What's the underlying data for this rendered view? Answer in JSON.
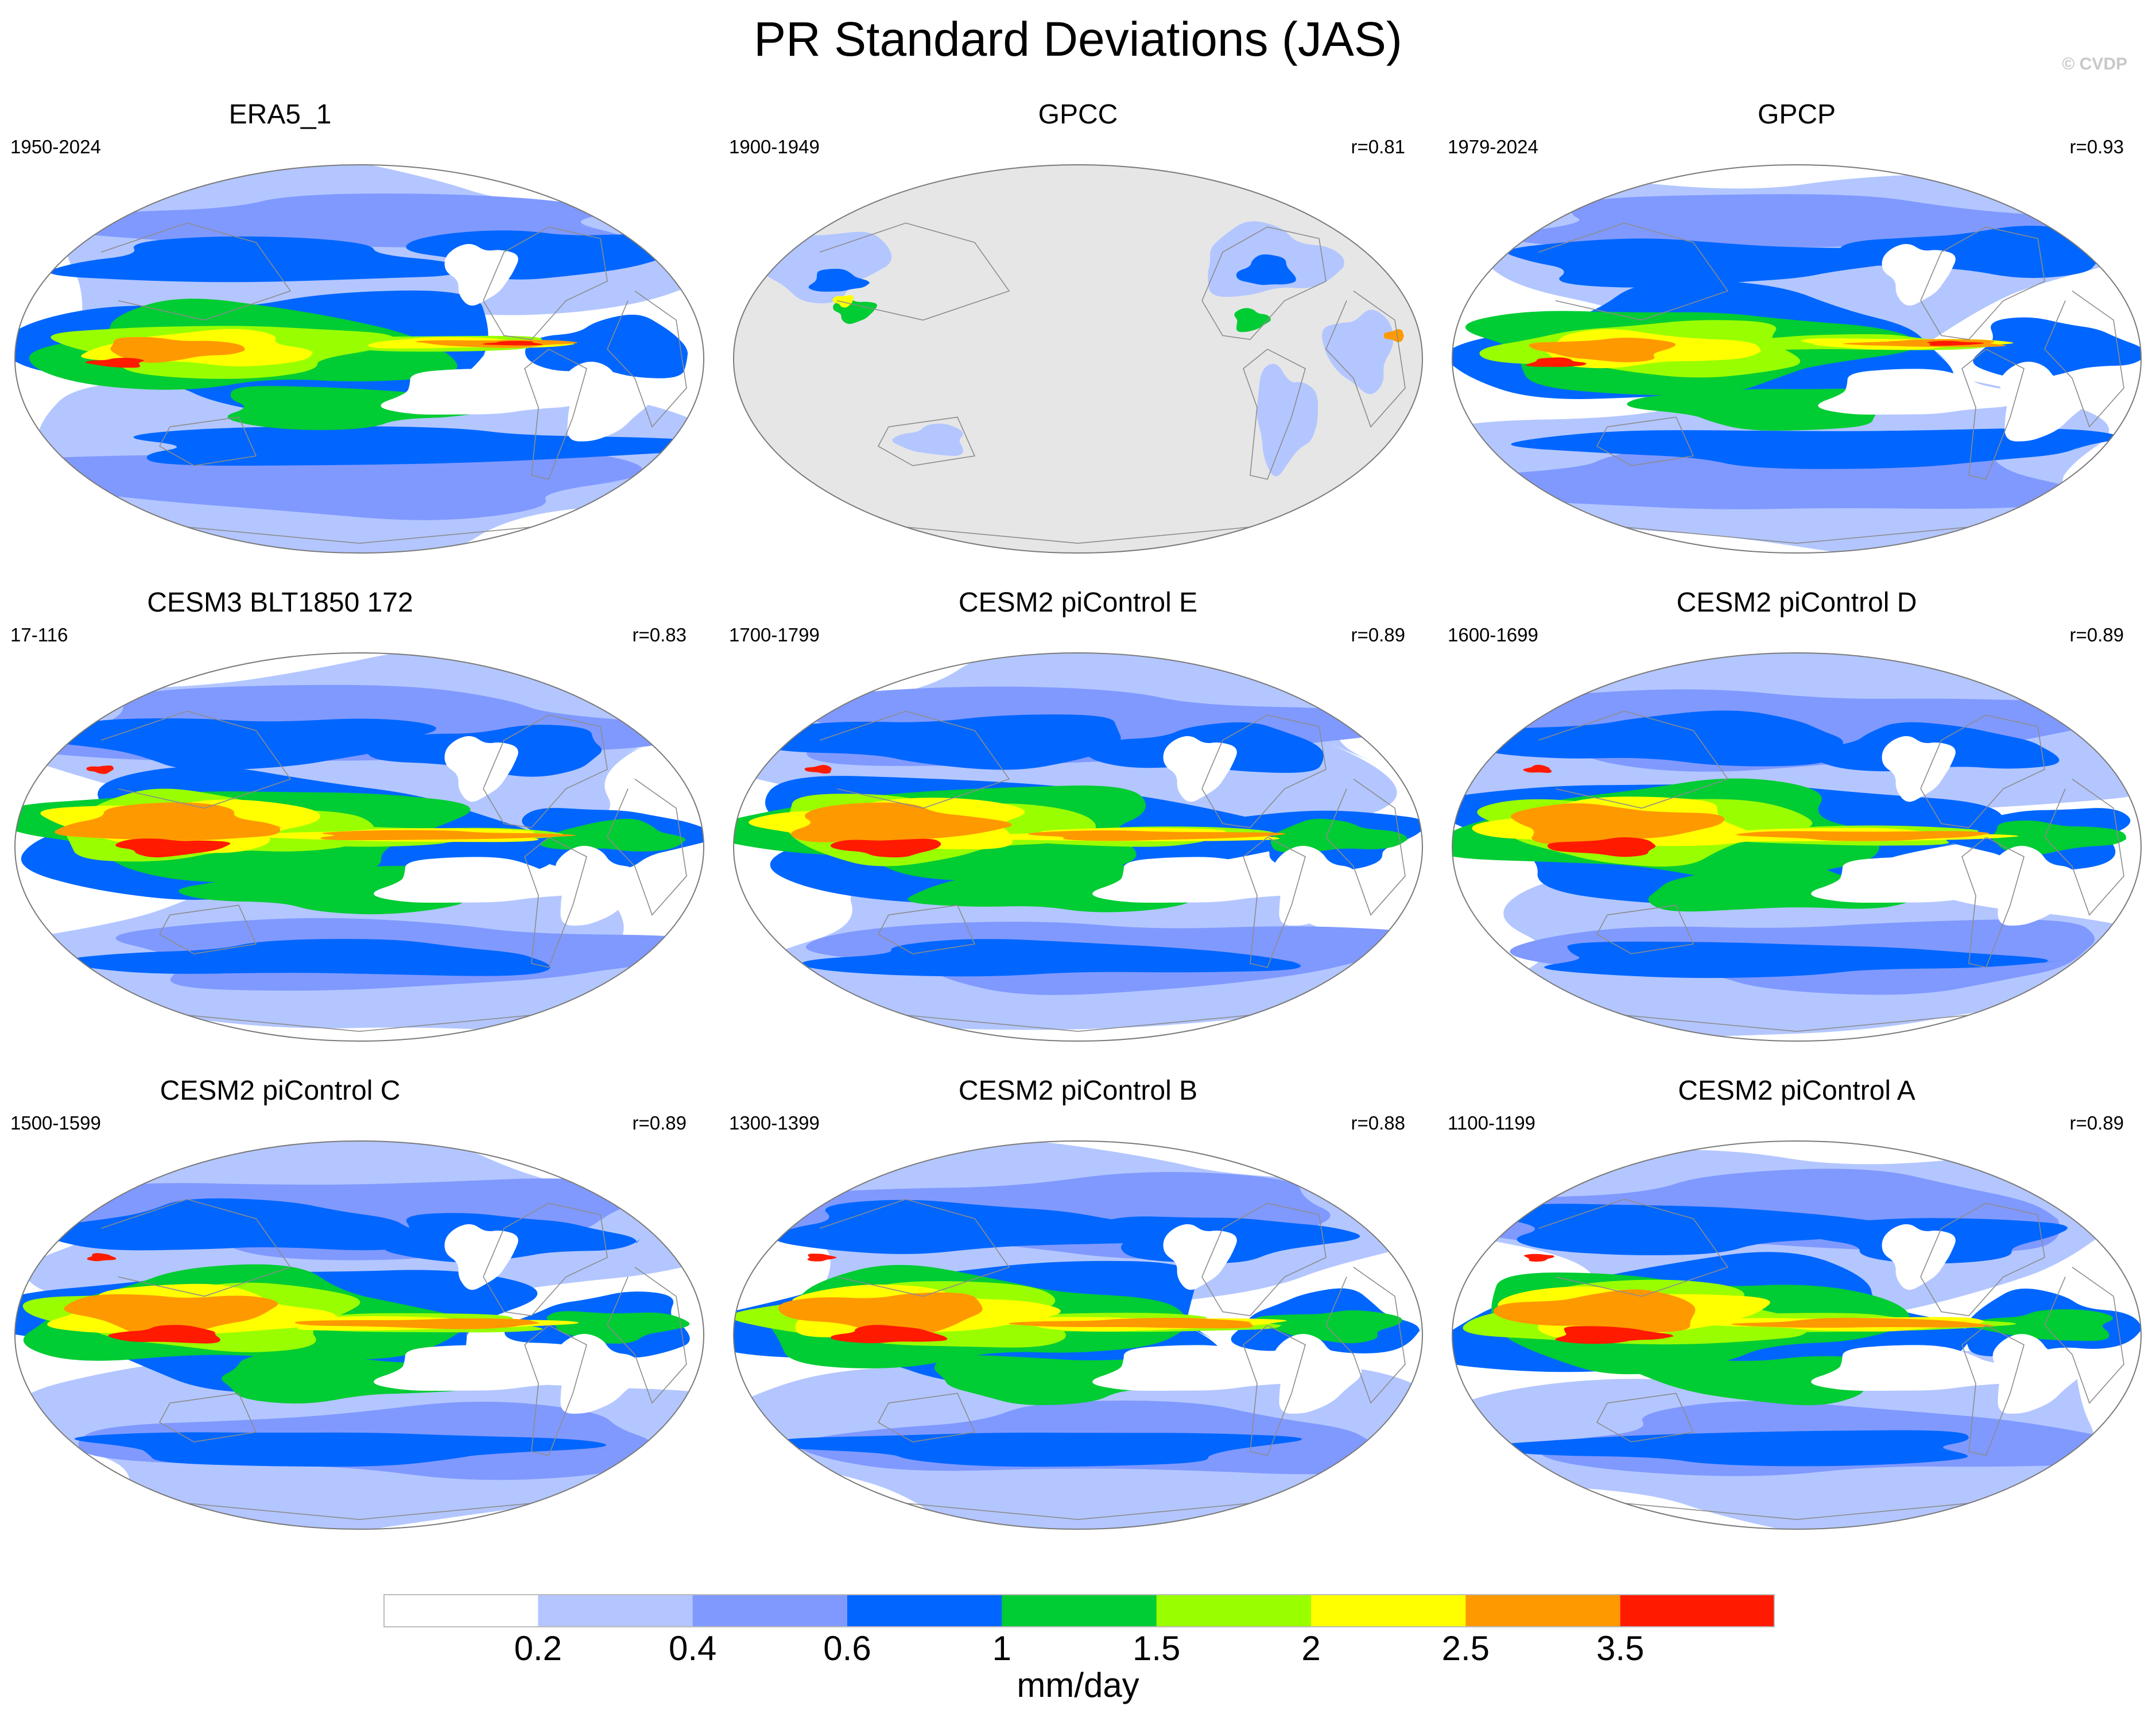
{
  "title": "PR Standard Deviations (JAS)",
  "watermark": "© CVDP",
  "panels": [
    {
      "name": "ERA5_1",
      "years": "1950-2024",
      "r": "",
      "style": "full"
    },
    {
      "name": "GPCC",
      "years": "1900-1949",
      "r": "r=0.81",
      "style": "land"
    },
    {
      "name": "GPCP",
      "years": "1979-2024",
      "r": "r=0.93",
      "style": "obs"
    },
    {
      "name": "CESM3 BLT1850 172",
      "years": "17-116",
      "r": "r=0.83",
      "style": "model"
    },
    {
      "name": "CESM2 piControl E",
      "years": "1700-1799",
      "r": "r=0.89",
      "style": "model"
    },
    {
      "name": "CESM2 piControl D",
      "years": "1600-1699",
      "r": "r=0.89",
      "style": "model"
    },
    {
      "name": "CESM2 piControl C",
      "years": "1500-1599",
      "r": "r=0.89",
      "style": "model"
    },
    {
      "name": "CESM2 piControl B",
      "years": "1300-1399",
      "r": "r=0.88",
      "style": "model"
    },
    {
      "name": "CESM2 piControl A",
      "years": "1100-1199",
      "r": "r=0.89",
      "style": "model"
    }
  ],
  "colorbar": {
    "units": "mm/day",
    "tick_labels": [
      "0.2",
      "0.4",
      "0.6",
      "1",
      "1.5",
      "2",
      "2.5",
      "3.5"
    ],
    "colors": [
      "#ffffff",
      "#b3c6ff",
      "#8099ff",
      "#0066ff",
      "#00cc33",
      "#99ff00",
      "#ffff00",
      "#ff9900",
      "#ff1a00"
    ]
  },
  "land_color": "#e6e6e6"
}
